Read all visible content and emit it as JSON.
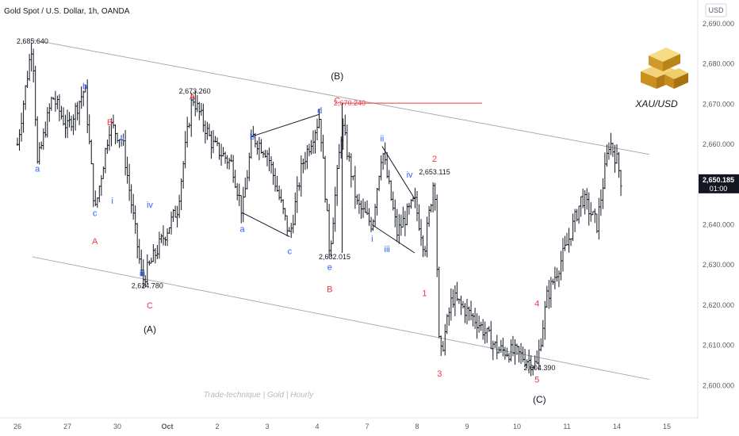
{
  "header": {
    "title": "Gold Spot / U.S. Dollar, 1h, OANDA",
    "currency": "USD"
  },
  "logo": {
    "label": "XAU/USD"
  },
  "watermark": "Trade-technique | Gold | Hourly",
  "chart_data": {
    "type": "candlestick",
    "ylim": [
      2595,
      2692
    ],
    "y_ticks": [
      "2,600.000",
      "2,610.000",
      "2,620.000",
      "2,630.000",
      "2,640.000",
      "2,650.000",
      "2,660.000",
      "2,670.000",
      "2,680.000",
      "2,690.000"
    ],
    "y_tick_values": [
      2600,
      2610,
      2620,
      2630,
      2640,
      2650,
      2660,
      2670,
      2680,
      2690
    ],
    "x_ticks": [
      "26",
      "27",
      "30",
      "Oct",
      "2",
      "3",
      "4",
      "7",
      "8",
      "9",
      "10",
      "11",
      "14",
      "15"
    ],
    "x_tick_index": [
      0,
      1,
      2,
      3,
      4,
      5,
      6,
      7,
      8,
      9,
      10,
      11,
      12,
      13
    ],
    "last_price": {
      "value": "2,650.185",
      "time": "01:00",
      "y": 2650.185
    },
    "price_labels": [
      {
        "text": "2,685.640",
        "t": 0.3,
        "y": 2685.64
      },
      {
        "text": "2,673.260",
        "t": 3.55,
        "y": 2673.26
      },
      {
        "text": "2,670.240",
        "t": 6.65,
        "y": 2670.24
      },
      {
        "text": "2,653.115",
        "t": 8.35,
        "y": 2653.115
      },
      {
        "text": "2,632.015",
        "t": 6.35,
        "y": 2632.015
      },
      {
        "text": "2,624.780",
        "t": 2.6,
        "y": 2624.78
      },
      {
        "text": "2,604.390",
        "t": 10.45,
        "y": 2604.39
      }
    ],
    "waves": [
      {
        "label": "a",
        "t": 0.4,
        "y": 2654.0,
        "color": "#2962ff"
      },
      {
        "label": "b",
        "t": 1.35,
        "y": 2674.5,
        "color": "#2962ff"
      },
      {
        "label": "B",
        "t": 1.85,
        "y": 2665.5,
        "color": "#f23645"
      },
      {
        "label": "c",
        "t": 1.55,
        "y": 2643.0,
        "color": "#2962ff"
      },
      {
        "label": "A",
        "t": 1.55,
        "y": 2636.0,
        "color": "#f23645"
      },
      {
        "label": "i",
        "t": 1.9,
        "y": 2646.0,
        "color": "#2962ff"
      },
      {
        "label": "ii",
        "t": 2.1,
        "y": 2661.5,
        "color": "#2962ff"
      },
      {
        "label": "iii",
        "t": 2.5,
        "y": 2628.0,
        "color": "#2962ff"
      },
      {
        "label": "iv",
        "t": 2.65,
        "y": 2645.0,
        "color": "#2962ff"
      },
      {
        "label": "C",
        "t": 2.65,
        "y": 2620.0,
        "color": "#f23645"
      },
      {
        "label": "(A)",
        "t": 2.65,
        "y": 2614.0,
        "color": "#131722"
      },
      {
        "label": "A",
        "t": 3.5,
        "y": 2672.0,
        "color": "#f23645"
      },
      {
        "label": "b",
        "t": 4.7,
        "y": 2662.0,
        "color": "#2962ff"
      },
      {
        "label": "a",
        "t": 4.5,
        "y": 2639.0,
        "color": "#2962ff"
      },
      {
        "label": "c",
        "t": 5.45,
        "y": 2633.5,
        "color": "#2962ff"
      },
      {
        "label": "d",
        "t": 6.05,
        "y": 2668.5,
        "color": "#2962ff"
      },
      {
        "label": "(B)",
        "t": 6.4,
        "y": 2677.0,
        "color": "#131722"
      },
      {
        "label": "C",
        "t": 6.4,
        "y": 2671.0,
        "color": "#f23645"
      },
      {
        "label": "e",
        "t": 6.25,
        "y": 2629.5,
        "color": "#2962ff"
      },
      {
        "label": "B",
        "t": 6.25,
        "y": 2624.0,
        "color": "#f23645"
      },
      {
        "label": "ii",
        "t": 7.3,
        "y": 2661.5,
        "color": "#2962ff"
      },
      {
        "label": "iv",
        "t": 7.85,
        "y": 2652.5,
        "color": "#2962ff"
      },
      {
        "label": "2",
        "t": 8.35,
        "y": 2656.5,
        "color": "#f23645"
      },
      {
        "label": "i",
        "t": 7.1,
        "y": 2636.5,
        "color": "#2962ff"
      },
      {
        "label": "iii",
        "t": 7.4,
        "y": 2634.0,
        "color": "#2962ff"
      },
      {
        "label": "1",
        "t": 8.15,
        "y": 2623.0,
        "color": "#f23645"
      },
      {
        "label": "3",
        "t": 8.45,
        "y": 2603.0,
        "color": "#f23645"
      },
      {
        "label": "4",
        "t": 10.4,
        "y": 2620.5,
        "color": "#f23645"
      },
      {
        "label": "5",
        "t": 10.4,
        "y": 2601.5,
        "color": "#f23645"
      },
      {
        "label": "(C)",
        "t": 10.45,
        "y": 2596.5,
        "color": "#131722"
      }
    ],
    "channel": {
      "upper": [
        [
          0.3,
          2686.0
        ],
        [
          12.65,
          2657.5
        ]
      ],
      "lower": [
        [
          0.3,
          2632.0
        ],
        [
          12.65,
          2601.5
        ]
      ]
    },
    "wave_lines": [
      [
        [
          4.5,
          2643.0
        ],
        [
          5.45,
          2637.0
        ]
      ],
      [
        [
          4.7,
          2662.0
        ],
        [
          6.05,
          2667.5
        ]
      ],
      [
        [
          6.5,
          2670.24
        ],
        [
          6.5,
          2633.0
        ]
      ],
      [
        [
          7.3,
          2659.5
        ],
        [
          7.95,
          2646.5
        ]
      ],
      [
        [
          7.1,
          2640.0
        ],
        [
          7.95,
          2633.0
        ]
      ]
    ],
    "resistance": {
      "t_from": 6.5,
      "t_to": 9.3,
      "y": 2670.24
    }
  }
}
